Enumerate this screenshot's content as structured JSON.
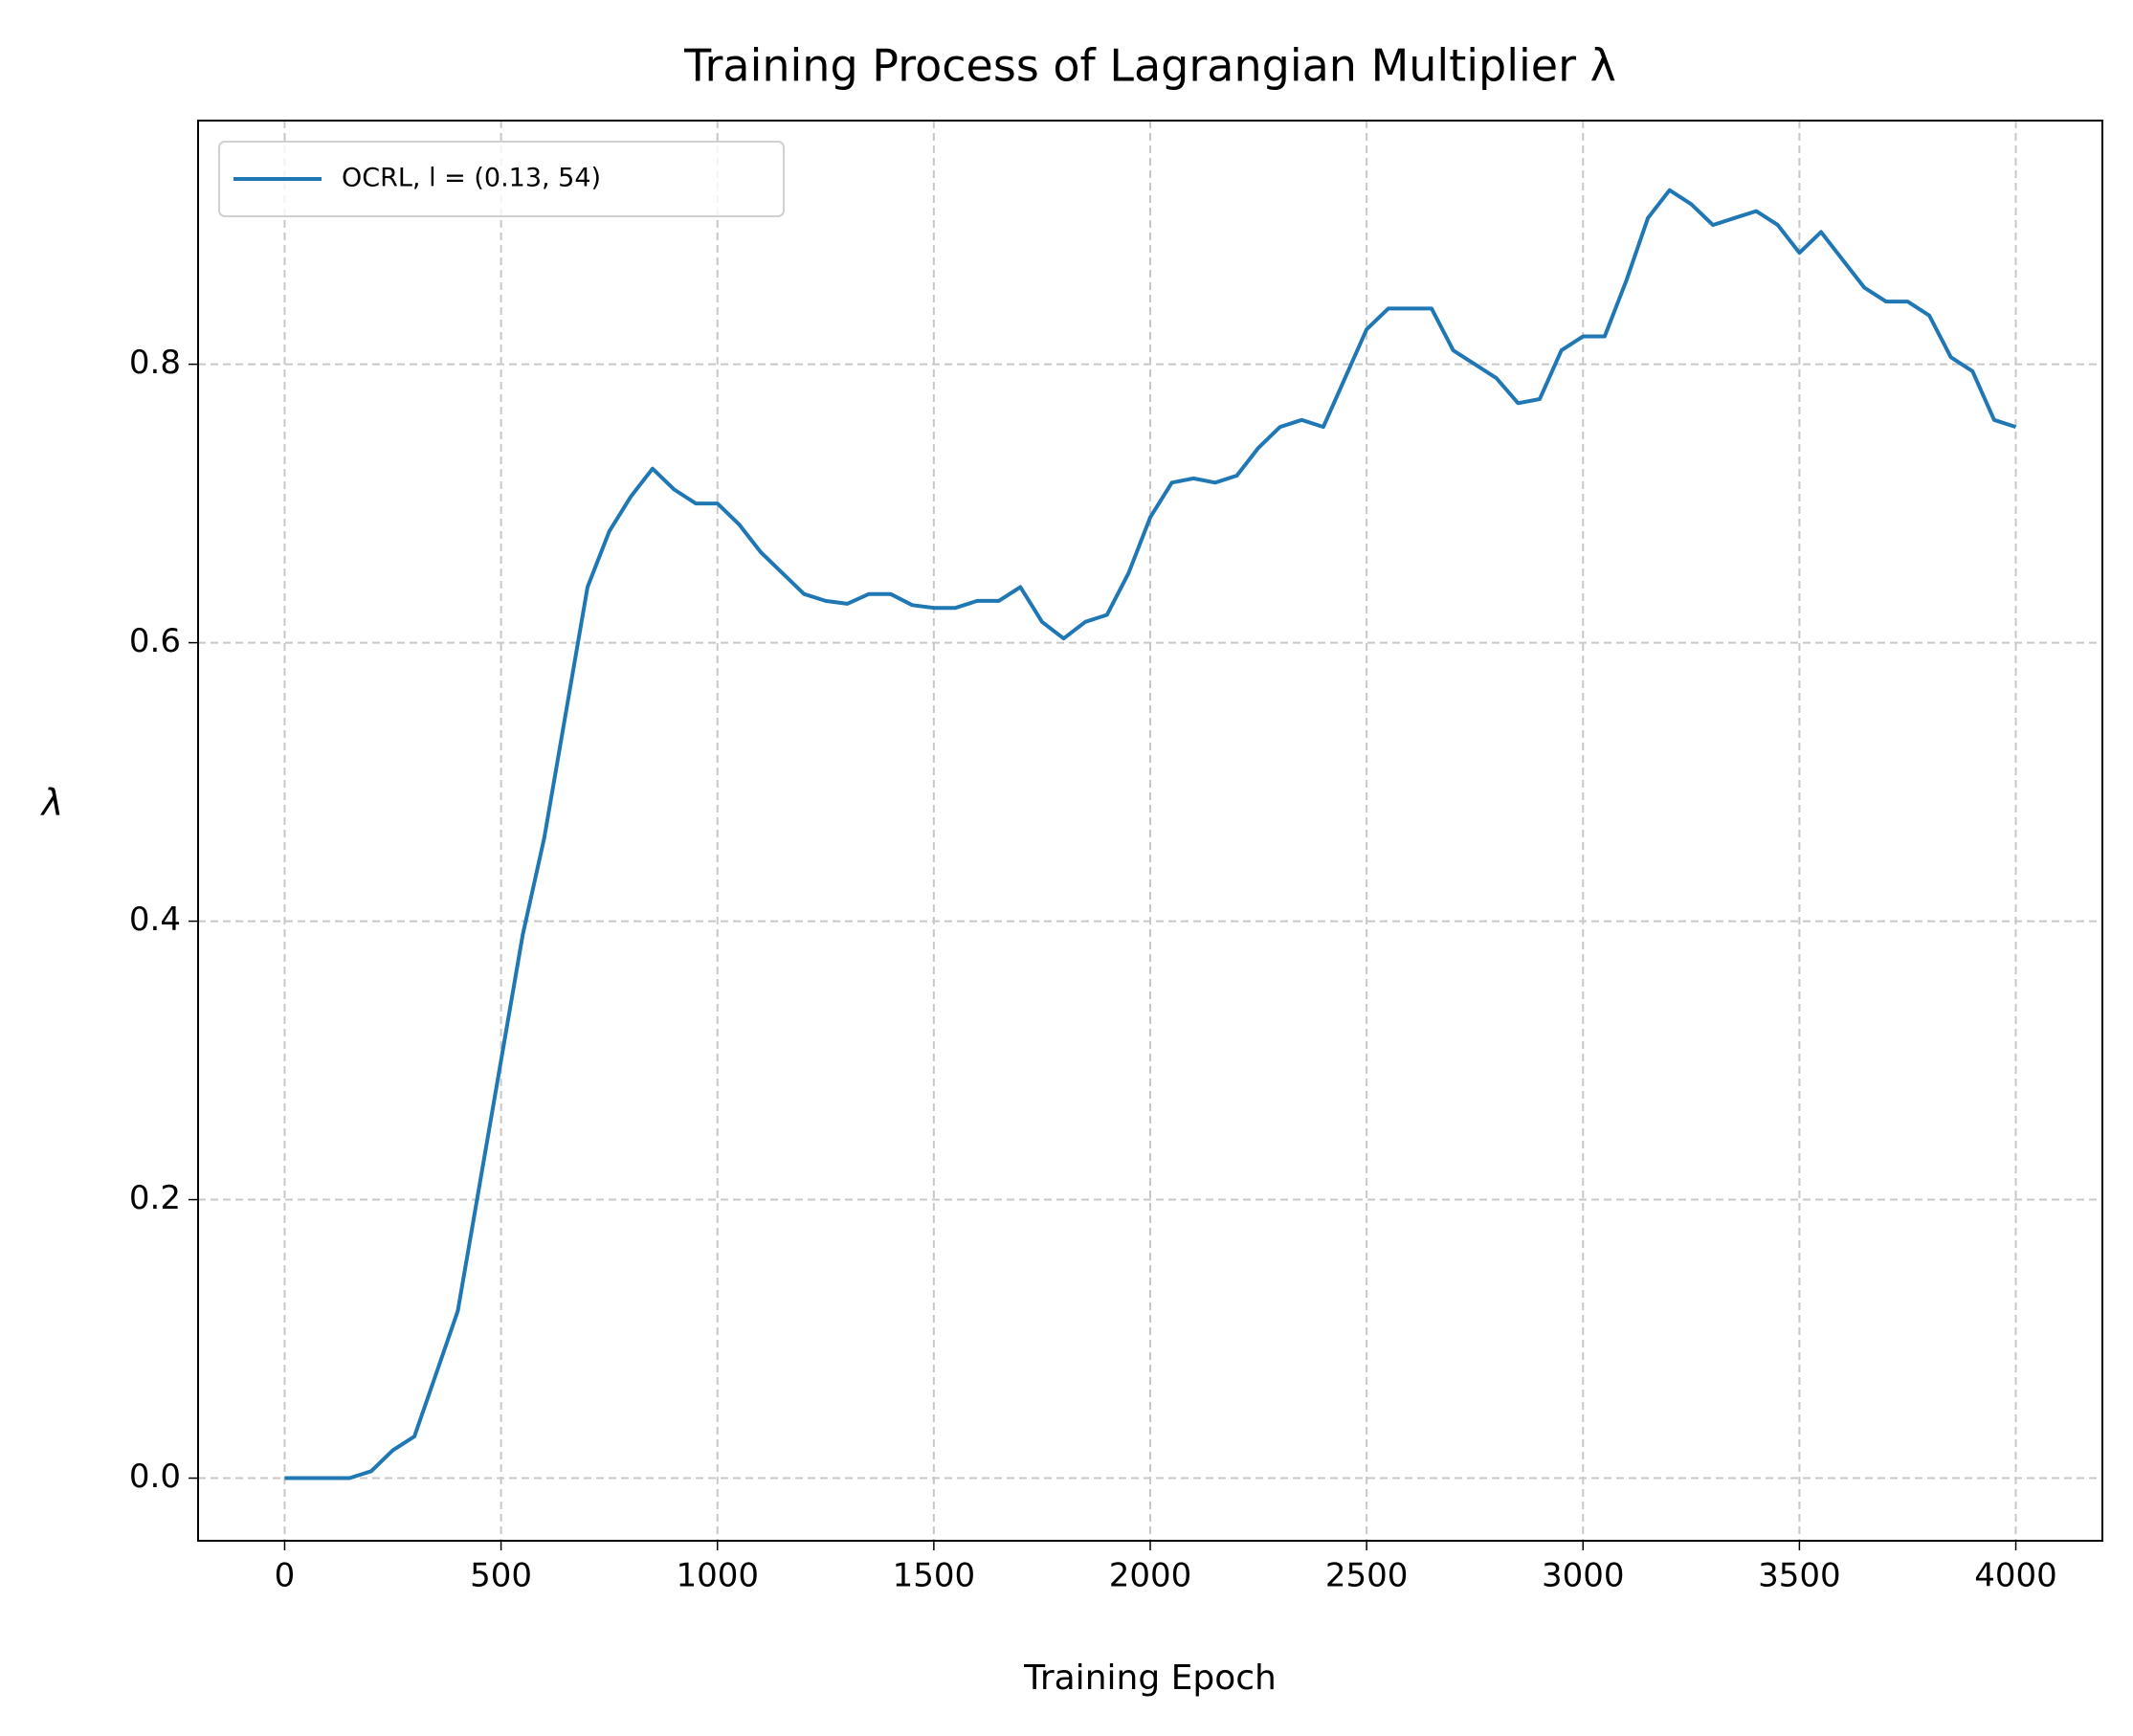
{
  "chart_data": {
    "type": "line",
    "title": "Training Process of Lagrangian Multiplier λ",
    "x_label": "Training Epoch",
    "y_label": "λ",
    "x": [
      0,
      50,
      100,
      150,
      200,
      250,
      300,
      350,
      400,
      450,
      500,
      550,
      600,
      650,
      700,
      750,
      800,
      850,
      900,
      950,
      1000,
      1050,
      1100,
      1150,
      1200,
      1250,
      1300,
      1350,
      1400,
      1450,
      1500,
      1550,
      1600,
      1650,
      1700,
      1750,
      1800,
      1850,
      1900,
      1950,
      2000,
      2050,
      2100,
      2150,
      2200,
      2250,
      2300,
      2350,
      2400,
      2450,
      2500,
      2550,
      2600,
      2650,
      2700,
      2750,
      2800,
      2850,
      2900,
      2950,
      3000,
      3050,
      3100,
      3150,
      3200,
      3250,
      3300,
      3350,
      3400,
      3450,
      3500,
      3550,
      3600,
      3650,
      3700,
      3750,
      3800,
      3850,
      3900,
      3950,
      4000
    ],
    "series": [
      {
        "name": "OCRL, l = (0.13, 54)",
        "color": "#1f77b4",
        "values": [
          0,
          0,
          0,
          0,
          0.005,
          0.02,
          0.03,
          0.075,
          0.12,
          0.21,
          0.3,
          0.39,
          0.46,
          0.55,
          0.64,
          0.68,
          0.705,
          0.725,
          0.71,
          0.7,
          0.7,
          0.685,
          0.665,
          0.65,
          0.635,
          0.63,
          0.628,
          0.635,
          0.635,
          0.627,
          0.625,
          0.625,
          0.63,
          0.63,
          0.64,
          0.615,
          0.603,
          0.615,
          0.62,
          0.65,
          0.69,
          0.715,
          0.718,
          0.715,
          0.72,
          0.74,
          0.755,
          0.76,
          0.755,
          0.79,
          0.825,
          0.84,
          0.84,
          0.84,
          0.81,
          0.8,
          0.79,
          0.772,
          0.775,
          0.81,
          0.82,
          0.82,
          0.86,
          0.905,
          0.925,
          0.915,
          0.9,
          0.905,
          0.91,
          0.9,
          0.88,
          0.895,
          0.875,
          0.855,
          0.845,
          0.845,
          0.835,
          0.805,
          0.795,
          0.76,
          0.755
        ]
      }
    ],
    "xlim": [
      -200,
      4200
    ],
    "ylim": [
      -0.045,
      0.975
    ],
    "xticks": [
      0,
      500,
      1000,
      1500,
      2000,
      2500,
      3000,
      3500,
      4000
    ],
    "yticks": [
      {
        "value": 0,
        "label": "0.0"
      },
      0.2,
      0.4,
      0.6,
      0.8
    ],
    "grid": true,
    "legend": "upper left"
  }
}
